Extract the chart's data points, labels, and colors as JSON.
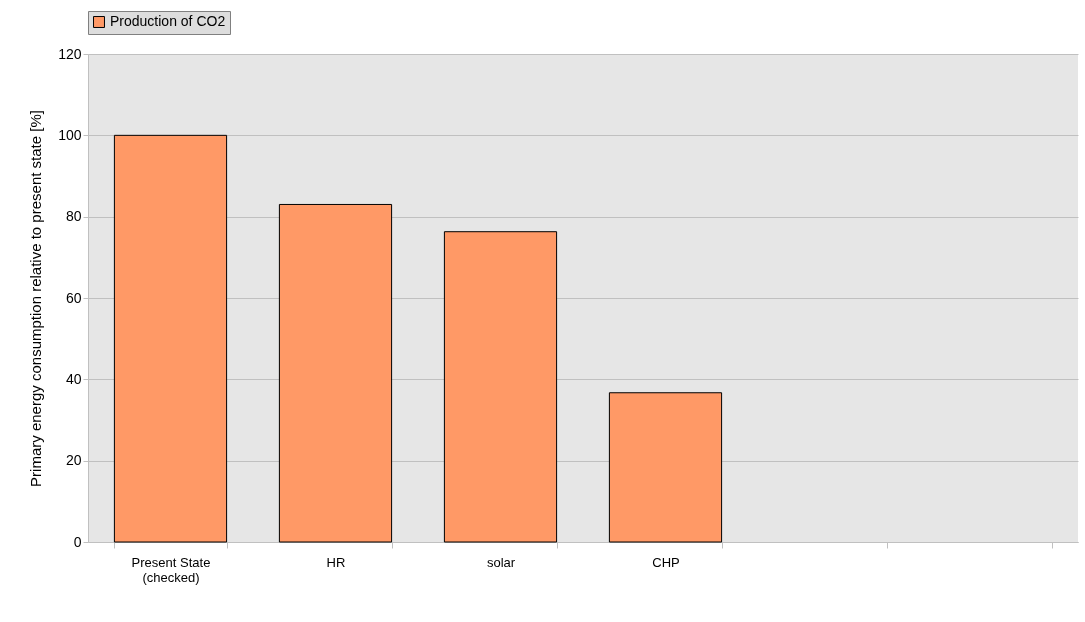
{
  "chart_data": {
    "type": "bar",
    "categories": [
      "Present State (checked)",
      "HR",
      "solar",
      "CHP",
      null,
      null
    ],
    "series": [
      {
        "name": "Production of CO2",
        "color": "#ff9966",
        "values": [
          100,
          83,
          76.3,
          36.7,
          null,
          null
        ]
      }
    ],
    "ylabel": "Primary energy consumption relative to present state [%]",
    "ylim": [
      0,
      120
    ],
    "yticks": [
      0,
      20,
      40,
      60,
      80,
      100,
      120
    ],
    "grid": "y",
    "legend": "top"
  }
}
